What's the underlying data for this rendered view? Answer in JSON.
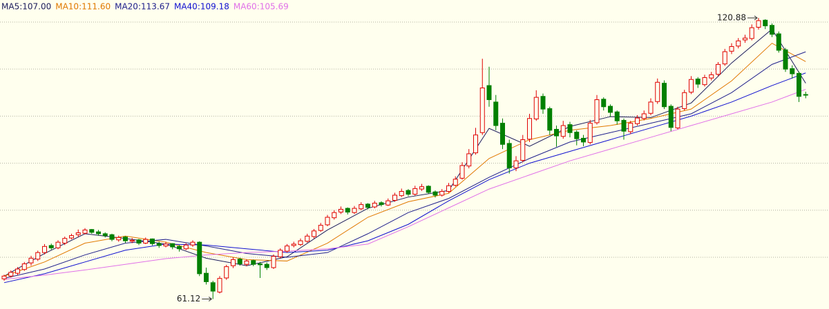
{
  "chart_data": {
    "type": "candlestick",
    "ylim": [
      59.0,
      124.69
    ],
    "gridlines": [
      70,
      80,
      90,
      100,
      110,
      120
    ],
    "up_color": "#e00000",
    "down_color": "#008000",
    "extremes": {
      "high": 120.88,
      "low": 61.12
    },
    "candles": [
      [
        65.4,
        66.3,
        65.0,
        66.0
      ],
      [
        66.0,
        67.2,
        65.7,
        66.8
      ],
      [
        66.6,
        67.9,
        66.2,
        67.5
      ],
      [
        67.4,
        69.0,
        67.1,
        68.6
      ],
      [
        68.8,
        70.3,
        68.2,
        69.8
      ],
      [
        69.6,
        71.4,
        69.2,
        71.0
      ],
      [
        71.0,
        72.8,
        70.6,
        72.3
      ],
      [
        72.5,
        72.9,
        71.6,
        72.0
      ],
      [
        72.0,
        73.6,
        71.7,
        73.2
      ],
      [
        73.0,
        74.4,
        72.6,
        74.0
      ],
      [
        74.1,
        75.0,
        73.8,
        74.6
      ],
      [
        74.8,
        75.9,
        74.3,
        75.2
      ],
      [
        75.1,
        76.2,
        74.9,
        75.8
      ],
      [
        75.9,
        76.0,
        75.0,
        75.3
      ],
      [
        75.4,
        75.8,
        74.6,
        75.0
      ],
      [
        75.0,
        75.3,
        74.2,
        74.6
      ],
      [
        74.8,
        75.0,
        73.4,
        73.8
      ],
      [
        73.7,
        74.6,
        73.3,
        74.2
      ],
      [
        74.3,
        74.5,
        73.0,
        73.5
      ],
      [
        73.4,
        74.1,
        73.0,
        73.6
      ],
      [
        73.7,
        73.9,
        72.6,
        73.0
      ],
      [
        73.0,
        74.2,
        72.8,
        73.8
      ],
      [
        73.9,
        74.0,
        72.5,
        72.9
      ],
      [
        72.9,
        73.3,
        72.0,
        72.5
      ],
      [
        72.4,
        73.3,
        72.1,
        72.8
      ],
      [
        72.9,
        73.0,
        71.7,
        72.2
      ],
      [
        72.3,
        72.6,
        71.2,
        71.8
      ],
      [
        71.8,
        73.0,
        71.5,
        72.6
      ],
      [
        72.6,
        73.6,
        72.2,
        73.2
      ],
      [
        73.2,
        73.4,
        66.0,
        66.5
      ],
      [
        66.6,
        67.8,
        64.2,
        64.8
      ],
      [
        64.6,
        65.0,
        61.12,
        62.8
      ],
      [
        62.6,
        66.0,
        62.3,
        65.5
      ],
      [
        65.6,
        68.4,
        65.2,
        68.0
      ],
      [
        68.2,
        70.0,
        67.7,
        69.5
      ],
      [
        69.6,
        69.9,
        68.2,
        68.6
      ],
      [
        68.5,
        69.6,
        68.1,
        69.2
      ],
      [
        69.3,
        69.5,
        68.1,
        68.5
      ],
      [
        68.6,
        69.0,
        65.6,
        68.4
      ],
      [
        68.5,
        68.9,
        67.3,
        67.8
      ],
      [
        67.8,
        70.6,
        67.5,
        70.2
      ],
      [
        70.1,
        71.9,
        69.8,
        71.5
      ],
      [
        71.3,
        72.8,
        71.0,
        72.4
      ],
      [
        72.5,
        73.3,
        72.1,
        72.8
      ],
      [
        72.7,
        74.0,
        72.4,
        73.5
      ],
      [
        73.4,
        75.0,
        73.1,
        74.5
      ],
      [
        74.4,
        76.0,
        74.0,
        75.6
      ],
      [
        75.7,
        77.3,
        75.4,
        76.8
      ],
      [
        76.9,
        79.0,
        76.6,
        78.5
      ],
      [
        78.4,
        80.0,
        78.0,
        79.5
      ],
      [
        79.6,
        80.8,
        79.2,
        80.2
      ],
      [
        80.4,
        80.6,
        79.1,
        79.6
      ],
      [
        79.5,
        80.9,
        79.2,
        80.4
      ],
      [
        80.3,
        81.7,
        80.0,
        81.2
      ],
      [
        81.3,
        81.5,
        80.2,
        80.6
      ],
      [
        80.7,
        82.0,
        80.4,
        81.5
      ],
      [
        81.6,
        81.9,
        80.8,
        81.2
      ],
      [
        81.1,
        82.5,
        80.9,
        82.0
      ],
      [
        82.1,
        83.7,
        81.8,
        83.2
      ],
      [
        83.1,
        84.6,
        82.8,
        84.0
      ],
      [
        84.2,
        84.5,
        83.0,
        83.4
      ],
      [
        83.4,
        85.2,
        83.1,
        84.6
      ],
      [
        84.5,
        85.6,
        84.1,
        85.0
      ],
      [
        85.1,
        85.3,
        83.5,
        83.8
      ],
      [
        83.9,
        84.2,
        82.7,
        83.2
      ],
      [
        83.2,
        84.5,
        82.9,
        84.0
      ],
      [
        84.0,
        85.8,
        83.7,
        85.2
      ],
      [
        85.3,
        87.2,
        85.0,
        86.6
      ],
      [
        86.8,
        90.2,
        86.5,
        89.5
      ],
      [
        89.4,
        93.0,
        88.9,
        92.0
      ],
      [
        92.2,
        97.5,
        91.8,
        96.0
      ],
      [
        96.5,
        112.2,
        96.0,
        106.0
      ],
      [
        106.5,
        110.5,
        102.0,
        103.5
      ],
      [
        103.0,
        104.5,
        97.0,
        98.0
      ],
      [
        98.5,
        99.5,
        93.0,
        94.0
      ],
      [
        94.2,
        95.0,
        87.8,
        89.0
      ],
      [
        89.0,
        91.5,
        88.3,
        90.5
      ],
      [
        90.6,
        96.0,
        90.2,
        95.0
      ],
      [
        95.1,
        100.5,
        94.5,
        99.5
      ],
      [
        99.4,
        105.5,
        99.0,
        104.0
      ],
      [
        104.2,
        104.8,
        100.5,
        101.5
      ],
      [
        101.6,
        102.0,
        96.0,
        97.0
      ],
      [
        97.2,
        98.0,
        93.5,
        95.8
      ],
      [
        95.7,
        99.0,
        95.2,
        98.0
      ],
      [
        98.2,
        98.8,
        95.5,
        96.5
      ],
      [
        96.6,
        97.0,
        93.8,
        95.2
      ],
      [
        95.3,
        96.0,
        93.6,
        94.5
      ],
      [
        94.4,
        99.2,
        94.0,
        98.5
      ],
      [
        98.6,
        104.5,
        98.2,
        103.5
      ],
      [
        103.6,
        104.0,
        101.2,
        102.0
      ],
      [
        102.1,
        102.5,
        99.8,
        100.8
      ],
      [
        100.9,
        101.2,
        98.2,
        99.0
      ],
      [
        99.1,
        99.5,
        95.0,
        96.8
      ],
      [
        96.7,
        99.0,
        96.2,
        98.5
      ],
      [
        98.4,
        100.2,
        98.0,
        99.6
      ],
      [
        99.5,
        101.2,
        99.1,
        100.5
      ],
      [
        100.6,
        103.8,
        100.2,
        103.0
      ],
      [
        103.1,
        108.0,
        102.6,
        107.2
      ],
      [
        107.0,
        107.6,
        101.5,
        102.0
      ],
      [
        102.1,
        102.5,
        96.8,
        97.6
      ],
      [
        97.5,
        102.0,
        97.2,
        101.5
      ],
      [
        101.6,
        105.6,
        101.2,
        105.0
      ],
      [
        105.1,
        108.5,
        104.7,
        107.8
      ],
      [
        107.9,
        108.3,
        106.0,
        106.8
      ],
      [
        106.7,
        108.8,
        106.3,
        108.2
      ],
      [
        108.1,
        109.4,
        107.6,
        108.8
      ],
      [
        108.9,
        111.5,
        108.5,
        111.0
      ],
      [
        111.1,
        114.3,
        110.7,
        113.7
      ],
      [
        113.8,
        115.5,
        113.2,
        114.8
      ],
      [
        114.9,
        116.6,
        114.4,
        116.0
      ],
      [
        116.2,
        117.3,
        115.6,
        116.6
      ],
      [
        116.5,
        119.5,
        116.1,
        118.8
      ],
      [
        118.9,
        120.88,
        118.4,
        120.3
      ],
      [
        120.4,
        120.6,
        118.5,
        119.2
      ],
      [
        119.3,
        119.7,
        116.8,
        117.4
      ],
      [
        117.5,
        118.0,
        113.5,
        114.0
      ],
      [
        114.1,
        114.5,
        109.4,
        110.0
      ],
      [
        110.1,
        110.8,
        108.0,
        109.0
      ],
      [
        109.1,
        109.5,
        103.0,
        104.2
      ],
      [
        104.6,
        105.2,
        103.8,
        104.5
      ]
    ],
    "x": [
      0,
      6,
      12,
      18,
      24,
      30,
      36,
      42,
      48,
      54,
      60,
      66,
      72,
      78,
      84,
      90,
      96,
      102,
      108,
      114,
      119
    ],
    "series": [
      {
        "name": "MA5:107.00",
        "color": "#1c1c5c",
        "values": [
          66.0,
          70.8,
          75.0,
          74.0,
          72.8,
          69.8,
          68.2,
          70.1,
          75.8,
          80.4,
          82.8,
          84.2,
          97.4,
          93.6,
          97.8,
          99.9,
          99.7,
          102.8,
          111.3,
          118.5,
          107.0
        ]
      },
      {
        "name": "MA10:111.60",
        "color": "#e07800",
        "values": [
          66.0,
          69.0,
          73.0,
          74.5,
          73.2,
          71.0,
          69.5,
          69.2,
          73.0,
          78.5,
          81.8,
          83.6,
          91.0,
          95.0,
          97.0,
          98.0,
          99.5,
          101.5,
          107.5,
          115.5,
          111.6
        ]
      },
      {
        "name": "MA20:113.67",
        "color": "#20208c",
        "values": [
          65.5,
          67.5,
          70.5,
          73.0,
          73.8,
          72.4,
          70.8,
          70.0,
          71.0,
          75.0,
          79.5,
          82.5,
          87.0,
          91.0,
          94.5,
          96.5,
          98.5,
          100.5,
          105.0,
          111.0,
          113.67
        ]
      },
      {
        "name": "MA40:109.18",
        "color": "#1010d0",
        "values": [
          64.6,
          66.5,
          69.0,
          71.5,
          72.8,
          72.6,
          71.8,
          71.0,
          71.5,
          73.5,
          77.0,
          82.0,
          86.5,
          90.0,
          92.5,
          95.0,
          97.5,
          100.0,
          103.0,
          106.5,
          109.18
        ]
      },
      {
        "name": "MA60:105.69",
        "color": "#e070e8",
        "values": [
          65.3,
          66.2,
          67.3,
          68.5,
          69.7,
          70.5,
          71.0,
          71.3,
          71.8,
          72.8,
          76.5,
          80.5,
          84.5,
          87.5,
          90.5,
          93.0,
          95.5,
          98.0,
          100.5,
          103.0,
          105.69
        ]
      }
    ]
  }
}
